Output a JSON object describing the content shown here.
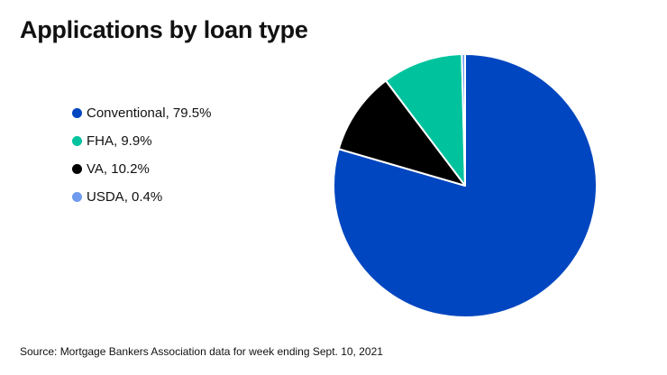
{
  "chart_data": {
    "type": "pie",
    "title": "Applications by loan type",
    "slices": [
      {
        "label": "Conventional",
        "value": 79.5,
        "value_text": "79.5%",
        "color": "#0046c0"
      },
      {
        "label": "FHA",
        "value": 9.9,
        "value_text": "9.9%",
        "color": "#00c39e"
      },
      {
        "label": "VA",
        "value": 10.2,
        "value_text": "10.2%",
        "color": "#000000"
      },
      {
        "label": "USDA",
        "value": 0.4,
        "value_text": "0.4%",
        "color": "#6e9bee"
      }
    ],
    "legend_position": "left"
  },
  "source": "Source: Mortgage Bankers Association data for week ending Sept. 10, 2021"
}
